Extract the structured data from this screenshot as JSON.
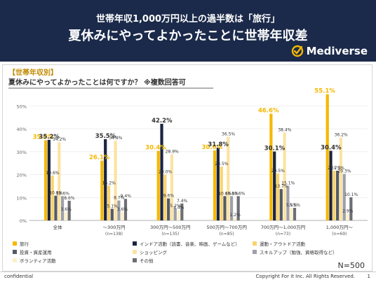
{
  "header": {
    "line1": "世帯年収1,000万円以上の過半数は「旅行」",
    "line2": "夏休みにやってよかったことに世帯年収差",
    "logo_text": "Mediverse",
    "bg_color": "#1b2a4a"
  },
  "panel": {
    "tag": "【世帯年収別】",
    "question": "夏休みにやってよかったことは何ですか？ ※複数回答可"
  },
  "chart_data": {
    "type": "bar",
    "categories": [
      "全体",
      "～300万円",
      "300万円～500万円",
      "500万円～700万円",
      "700万円～1,000万円",
      "1,000万円～"
    ],
    "category_n": [
      "",
      "(n=138)",
      "(n=135)",
      "(n=85)",
      "(n=73)",
      "(n=69)"
    ],
    "series": [
      {
        "name": "旅行",
        "color": "#f5b800",
        "values": [
          35.0,
          26.1,
          30.4,
          30.6,
          46.6,
          55.1
        ]
      },
      {
        "name": "インドア活動（読書、音楽、映画、ゲームなど）",
        "color": "#1b2440",
        "values": [
          35.2,
          35.5,
          42.2,
          31.8,
          30.1,
          30.4
        ]
      },
      {
        "name": "運動・アウトドア活動",
        "color": "#fad36a",
        "values": [
          19.6,
          15.2,
          20.0,
          23.5,
          20.5,
          21.7
        ]
      },
      {
        "name": "投資・資産運用",
        "color": "#565a66",
        "values": [
          10.8,
          5.1,
          9.6,
          10.6,
          13.7,
          21.7
        ]
      },
      {
        "name": "ショッピング",
        "color": "#fbe3a3",
        "values": [
          34.2,
          34.8,
          28.9,
          36.5,
          38.4,
          36.2
        ]
      },
      {
        "name": "スキルアップ（勉強、資格取得など）",
        "color": "#9ea0aa",
        "values": [
          10.6,
          8.7,
          5.2,
          10.6,
          15.1,
          20.3
        ]
      },
      {
        "name": "ボランティア活動",
        "color": "#fdf0c8",
        "values": [
          3.6,
          3.6,
          4.4,
          1.2,
          5.5,
          2.9
        ]
      },
      {
        "name": "その他",
        "color": "#6d6f75",
        "values": [
          8.6,
          9.4,
          7.4,
          10.6,
          5.5,
          10.1
        ]
      }
    ],
    "yticks": [
      "0%",
      "10%",
      "20%",
      "30%",
      "40%",
      "50%"
    ],
    "ylim": [
      0,
      55
    ],
    "highlight_color": "#f5b800",
    "note": "N=500"
  },
  "footer": {
    "left": "confidential",
    "right": "Copyright For it Inc. All Rights Reserved.",
    "page": "1"
  }
}
